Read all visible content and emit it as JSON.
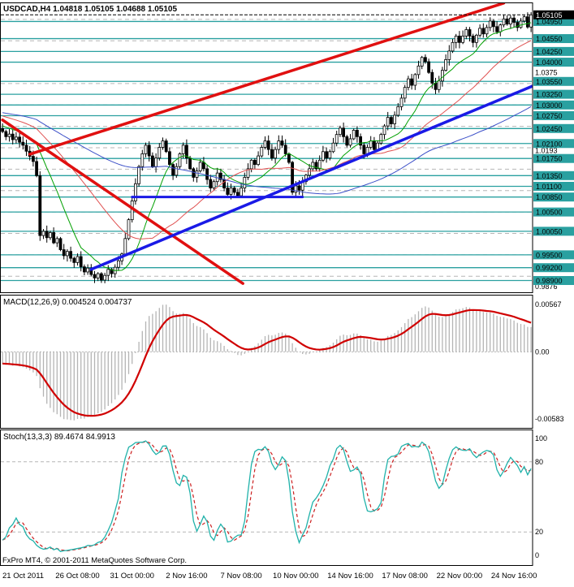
{
  "header": {
    "title": "USDCAD,H4 1.04818 1.05105 1.04688 1.05105"
  },
  "footer": {
    "copyright": "FxPro MT4, © 2001-2011 MetaQuotes Software Corp."
  },
  "colors": {
    "background": "#ffffff",
    "foreground": "#000000",
    "level_line": "#2aa0a0",
    "level_box_text": "#000000",
    "trend_red": "#e01010",
    "trend_blue": "#1a1ae6",
    "bull_body": "#ffffff",
    "bear_body": "#000000",
    "candle_outline": "#000000",
    "grid": "#b6b6b6",
    "macd_histogram": "#b4b4b4",
    "macd_signal": "#d00000",
    "stoch_main": "#20b2aa",
    "stoch_signal": "#cc2020",
    "ma_fast": "#00a000",
    "ma_mid": "#e05252",
    "ma_slow": "#3c50c8",
    "current_price_box": "#000000",
    "current_price_text": "#ffffff"
  },
  "chart_data": {
    "type": "candlestick",
    "symbol": "USDCAD",
    "timeframe": "H4",
    "ohlc_display": {
      "open": "1.04818",
      "high": "1.05105",
      "low": "1.04688",
      "close": "1.05105"
    },
    "y_range": [
      0.9872,
      1.053
    ],
    "grid_step": 0.005,
    "first_open": 1.0245,
    "closes": [
      1.0238,
      1.0226,
      1.0232,
      1.0219,
      1.0225,
      1.0213,
      1.0206,
      1.0192,
      1.018,
      1.0168,
      1.0135,
      0.9995,
      1.0005,
      0.999,
      1.0002,
      0.9978,
      0.9988,
      0.9962,
      0.9948,
      0.9958,
      0.9942,
      0.9932,
      0.9946,
      0.9922,
      0.991,
      0.9919,
      0.9904,
      0.9896,
      0.9906,
      0.9891,
      0.9902,
      0.9916,
      0.9906,
      0.9921,
      0.9936,
      0.9952,
      0.9988,
      1.0032,
      1.0076,
      1.0116,
      1.0156,
      1.0186,
      1.0206,
      1.0181,
      1.0156,
      1.0176,
      1.0201,
      1.0216,
      1.0191,
      1.0161,
      1.0136,
      1.0156,
      1.0186,
      1.0206,
      1.0176,
      1.0151,
      1.0131,
      1.0146,
      1.0166,
      1.0151,
      1.0126,
      1.0106,
      1.0121,
      1.0141,
      1.0126,
      1.0106,
      1.0091,
      1.0106,
      1.0096,
      1.0088,
      1.0106,
      1.0131,
      1.0151,
      1.0171,
      1.0161,
      1.0181,
      1.0201,
      1.0216,
      1.0196,
      1.0176,
      1.0196,
      1.0216,
      1.0206,
      1.0186,
      1.0166,
      1.0096,
      1.0111,
      1.0101,
      1.0121,
      1.0136,
      1.0151,
      1.0166,
      1.0151,
      1.0171,
      1.0191,
      1.0176,
      1.0191,
      1.0211,
      1.0231,
      1.0246,
      1.0226,
      1.0206,
      1.0221,
      1.0241,
      1.0226,
      1.0206,
      1.0186,
      1.0201,
      1.0216,
      1.0196,
      1.0211,
      1.0231,
      1.0251,
      1.0271,
      1.0256,
      1.0276,
      1.0296,
      1.0316,
      1.0341,
      1.0361,
      1.0346,
      1.0371,
      1.0391,
      1.0411,
      1.0401,
      1.0376,
      1.0351,
      1.0336,
      1.0356,
      1.0381,
      1.0406,
      1.0426,
      1.0446,
      1.0461,
      1.0446,
      1.0461,
      1.0476,
      1.0461,
      1.0446,
      1.0463,
      1.0479,
      1.0466,
      1.0481,
      1.0496,
      1.0483,
      1.0471,
      1.0487,
      1.0501,
      1.0489,
      1.0503,
      1.0493,
      1.0481,
      1.0496,
      1.0506,
      1.0482,
      1.05105
    ],
    "time_ticks": [
      {
        "idx": 6,
        "label": "21 Oct 2011"
      },
      {
        "idx": 22,
        "label": "26 Oct 08:00"
      },
      {
        "idx": 38,
        "label": "31 Oct 00:00"
      },
      {
        "idx": 54,
        "label": "2 Nov 16:00"
      },
      {
        "idx": 70,
        "label": "7 Nov 08:00"
      },
      {
        "idx": 86,
        "label": "10 Nov 00:00"
      },
      {
        "idx": 102,
        "label": "14 Nov 16:00"
      },
      {
        "idx": 118,
        "label": "17 Nov 08:00"
      },
      {
        "idx": 134,
        "label": "22 Nov 00:00"
      },
      {
        "idx": 150,
        "label": "24 Nov 16:00"
      }
    ],
    "price_levels": [
      {
        "price": 1.0495,
        "label": "1.04950"
      },
      {
        "price": 1.0455,
        "label": "1.04550"
      },
      {
        "price": 1.0425,
        "label": "1.04250"
      },
      {
        "price": 1.04,
        "label": "1.04000"
      },
      {
        "price": 1.0355,
        "label": "1.03550"
      },
      {
        "price": 1.0325,
        "label": "1.03250"
      },
      {
        "price": 1.03,
        "label": "1.03000"
      },
      {
        "price": 1.0275,
        "label": "1.02750"
      },
      {
        "price": 1.0245,
        "label": "1.02450"
      },
      {
        "price": 1.021,
        "label": "1.02100"
      },
      {
        "price": 1.0175,
        "label": "1.01750"
      },
      {
        "price": 1.0135,
        "label": "1.01350"
      },
      {
        "price": 1.011,
        "label": "1.01100"
      },
      {
        "price": 1.0085,
        "label": "1.00850"
      },
      {
        "price": 1.005,
        "label": "1.00500"
      },
      {
        "price": 1.0005,
        "label": "1.00050"
      },
      {
        "price": 0.995,
        "label": "0.99500"
      },
      {
        "price": 0.992,
        "label": "0.99200"
      },
      {
        "price": 0.989,
        "label": "0.98900"
      }
    ],
    "plain_axis_ticks": [
      {
        "price": 1.0375,
        "label": "1.0375"
      },
      {
        "price": 1.0193,
        "label": "1.0193"
      },
      {
        "price": 0.9876,
        "label": "0.9876"
      }
    ],
    "current_price": {
      "price": 1.05105,
      "label": "1.05105"
    },
    "trend_lines": [
      {
        "name": "descending-red-trendline",
        "color_key": "trend_red",
        "width": 3.5,
        "points": [
          [
            0,
            1.0265
          ],
          [
            70.5,
            0.9883
          ]
        ]
      },
      {
        "name": "ascending-red-trendline",
        "color_key": "trend_red",
        "width": 3.5,
        "points": [
          [
            8,
            1.0185
          ],
          [
            147,
            1.0538
          ]
        ]
      },
      {
        "name": "ascending-blue-trendline",
        "color_key": "trend_blue",
        "width": 3.5,
        "points": [
          [
            26,
            0.9916
          ],
          [
            156,
            1.0346
          ]
        ]
      },
      {
        "name": "horizontal-blue-support",
        "color_key": "trend_blue",
        "width": 3,
        "points": [
          [
            38,
            1.0085
          ],
          [
            88,
            1.0085
          ]
        ]
      }
    ],
    "moving_averages": [
      {
        "period": 13,
        "color_key": "ma_fast"
      },
      {
        "period": 34,
        "color_key": "ma_mid"
      },
      {
        "period": 89,
        "color_key": "ma_slow"
      }
    ],
    "indicators": {
      "macd": {
        "name": "MACD",
        "params": [
          12,
          26,
          9
        ],
        "label": "MACD(12,26,9) 0.004524 0.004737",
        "values": [
          "0.004524",
          "0.004737"
        ],
        "axis_labels": [
          "0.00567",
          "0.00",
          "-0.00583"
        ]
      },
      "stoch": {
        "name": "Stochastic",
        "params": [
          13,
          3,
          3
        ],
        "label": "Stoch(13,3,3) 89.4674 84.9913",
        "values": [
          "89.4674",
          "84.9913"
        ],
        "axis_labels": [
          "100",
          "80",
          "20",
          "0"
        ],
        "levels": [
          80,
          20
        ]
      }
    }
  }
}
